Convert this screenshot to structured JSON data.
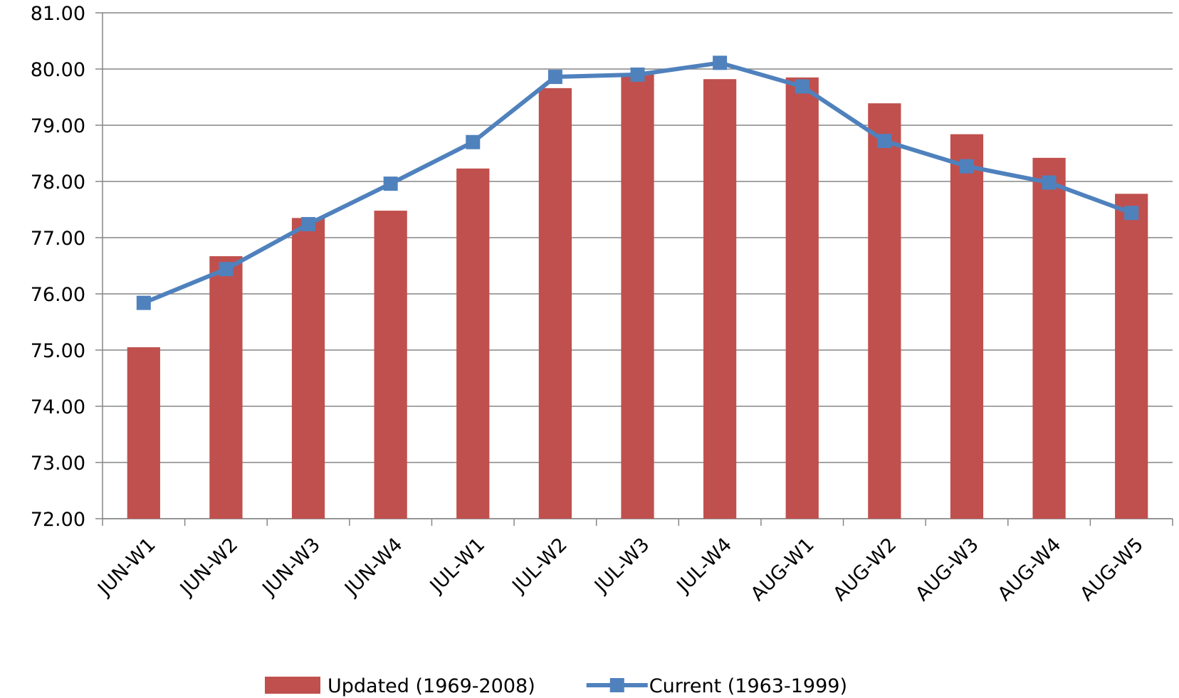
{
  "chart_data": {
    "type": "bar",
    "categories": [
      "JUN-W1",
      "JUN-W2",
      "JUN-W3",
      "JUN-W4",
      "JUL-W1",
      "JUL-W2",
      "JUL-W3",
      "JUL-W4",
      "AUG-W1",
      "AUG-W2",
      "AUG-W3",
      "AUG-W4",
      "AUG-W5"
    ],
    "series": [
      {
        "name": "Updated (1969-2008)",
        "type": "bar",
        "color": "#c0504d",
        "values": [
          75.05,
          76.67,
          77.35,
          77.48,
          78.23,
          79.66,
          79.93,
          79.82,
          79.85,
          79.39,
          78.84,
          78.42,
          77.78
        ]
      },
      {
        "name": "Current (1963-1999)",
        "type": "line",
        "color": "#4f81bd",
        "values": [
          75.84,
          76.44,
          77.24,
          77.96,
          78.7,
          79.86,
          79.9,
          80.11,
          79.69,
          78.72,
          78.27,
          77.98,
          77.44
        ]
      }
    ],
    "ylim": [
      72,
      81
    ],
    "yticks": [
      {
        "value": 72,
        "label": "72.00"
      },
      {
        "value": 73,
        "label": "73.00"
      },
      {
        "value": 74,
        "label": "74.00"
      },
      {
        "value": 75,
        "label": "75.00"
      },
      {
        "value": 76,
        "label": "76.00"
      },
      {
        "value": 77,
        "label": "77.00"
      },
      {
        "value": 78,
        "label": "78.00"
      },
      {
        "value": 79,
        "label": "79.00"
      },
      {
        "value": 80,
        "label": "80.00"
      },
      {
        "value": 81,
        "label": "81.00"
      }
    ],
    "grid": true,
    "legend": "bottom"
  }
}
